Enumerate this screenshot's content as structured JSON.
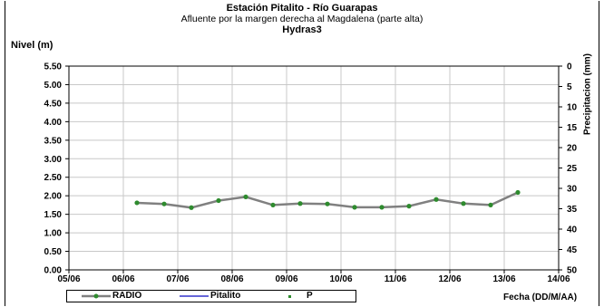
{
  "colors": {
    "radio": "#808080",
    "radio_marker": "#2e8b2e",
    "pitalito": "#3333cc",
    "p": "#2e8b2e",
    "grid": "#c8c8c8"
  },
  "chart_data": {
    "type": "line",
    "title": "Estación Pitalito  - Río Guarapas",
    "subtitle": "Afluente por la margen derecha al Magdalena (parte alta)",
    "subtitle2": "Hydras3",
    "ylabel": "Nivel (m)",
    "y2label": "Precipitacion (mm)",
    "xlabel": "Fecha (DD/M/AA)",
    "ylim": [
      0,
      5.5
    ],
    "y_ticks": [
      "0.00",
      "0.50",
      "1.00",
      "1.50",
      "2.00",
      "2.50",
      "3.00",
      "3.50",
      "4.00",
      "4.50",
      "5.00",
      "5.50"
    ],
    "y2lim": [
      0,
      50
    ],
    "y2_inverted": true,
    "y2_ticks": [
      "0",
      "5",
      "10",
      "15",
      "20",
      "25",
      "30",
      "35",
      "40",
      "45",
      "50"
    ],
    "x_ticks": [
      "05/06",
      "06/06",
      "07/06",
      "08/06",
      "09/06",
      "10/06",
      "11/06",
      "12/06",
      "13/06",
      "14/06"
    ],
    "grid": true,
    "legend_position": "bottom",
    "series": [
      {
        "name": "RADIO",
        "x": [
          1.25,
          1.75,
          2.25,
          2.75,
          3.25,
          3.75,
          4.25,
          4.75,
          5.25,
          5.75,
          6.25,
          6.75,
          7.25,
          7.75,
          8.25
        ],
        "values": [
          1.81,
          1.78,
          1.68,
          1.87,
          1.97,
          1.75,
          1.79,
          1.78,
          1.69,
          1.69,
          1.72,
          1.9,
          1.79,
          1.75,
          2.09
        ]
      },
      {
        "name": "Pitalito",
        "x": [],
        "values": []
      },
      {
        "name": "P",
        "x": [],
        "values": []
      }
    ]
  }
}
